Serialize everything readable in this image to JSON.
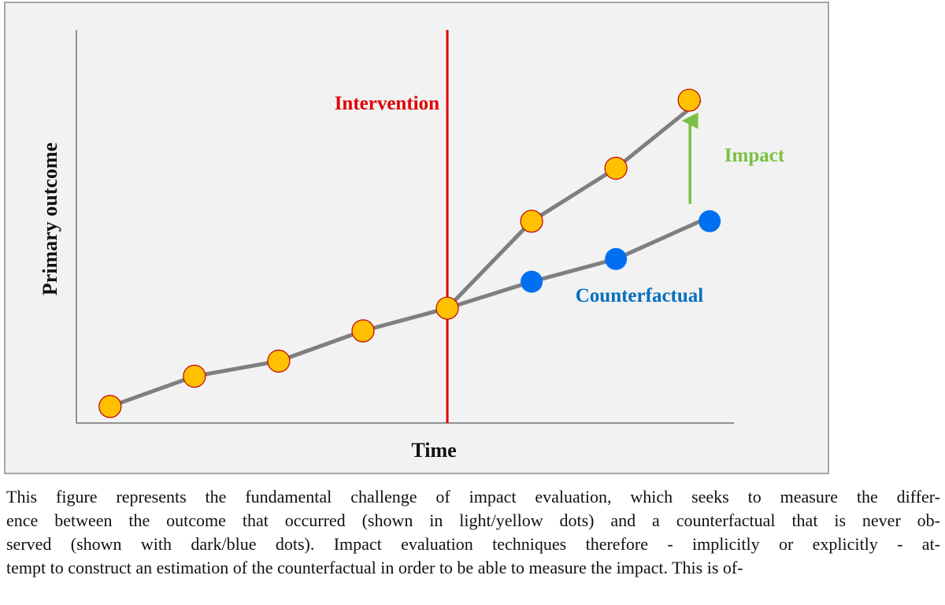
{
  "chart_data": {
    "type": "line",
    "xlabel": "Time",
    "ylabel": "Primary outcome",
    "x": [
      1,
      2,
      3,
      4,
      5,
      6,
      7,
      8
    ],
    "xlim": [
      0.6,
      8.4
    ],
    "ylim": [
      0,
      10
    ],
    "grid": false,
    "series": [
      {
        "name": "",
        "color": "#ffc000",
        "edge_color": "#c00000",
        "x": [
          1,
          2,
          3,
          4,
          5,
          6,
          7,
          8
        ],
        "values": [
          0.5,
          1.3,
          1.7,
          2.5,
          3.1,
          5.4,
          6.8,
          8.6
        ]
      },
      {
        "name": "Counterfactual",
        "color": "#0070f0",
        "x": [
          5,
          6,
          7,
          8
        ],
        "values": [
          3.1,
          3.8,
          4.4,
          5.4
        ]
      }
    ],
    "annotations": [
      {
        "id": "intervention",
        "text": "Intervention",
        "type": "vertical-line",
        "x": 5,
        "color": "#e00000"
      },
      {
        "id": "impact",
        "text": "Impact",
        "type": "arrow",
        "x": 8,
        "from": 5.4,
        "to": 8.6,
        "color": "#7ac143"
      },
      {
        "id": "counterfactual",
        "text": "Counterfactual",
        "type": "label",
        "color": "#0070c0"
      }
    ],
    "line_color": "#7f7f7f"
  },
  "caption": {
    "lines": [
      "This figure represents the fundamental challenge of impact evaluation, which seeks to measure the differ-",
      "ence between the outcome that occurred (shown in light/yellow dots) and a counterfactual that is never ob-",
      "served (shown with dark/blue dots). Impact evaluation techniques therefore - implicitly or explicitly - at-",
      "tempt to construct an estimation of the counterfactual in order to be able to measure the impact. This is of-"
    ]
  }
}
